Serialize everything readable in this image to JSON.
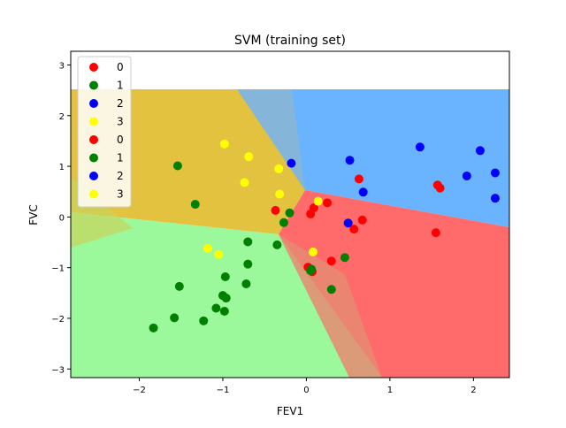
{
  "chart_data": {
    "type": "scatter",
    "title": "SVM (training set)",
    "xlabel": "FEV1",
    "ylabel": "FVC",
    "xlim": [
      -2.82,
      2.43
    ],
    "ylim": [
      -3.17,
      3.27
    ],
    "x_ticks": [
      -2,
      -1,
      0,
      1,
      2
    ],
    "x_tick_labels": [
      "−2",
      "−1",
      "0",
      "1",
      "2"
    ],
    "y_ticks": [
      -3,
      -2,
      -1,
      0,
      1,
      2,
      3
    ],
    "y_tick_labels": [
      "−3",
      "−2",
      "−1",
      "0",
      "1",
      "2",
      "3"
    ],
    "grid": false,
    "legend_position": "top-left",
    "legend": [
      {
        "label": "0",
        "color": "#ff0000"
      },
      {
        "label": "1",
        "color": "#008000"
      },
      {
        "label": "2",
        "color": "#0000ff"
      },
      {
        "label": "3",
        "color": "#ffff00"
      },
      {
        "label": "0",
        "color": "#ff0000"
      },
      {
        "label": "1",
        "color": "#008000"
      },
      {
        "label": "2",
        "color": "#0000ff"
      },
      {
        "label": "3",
        "color": "#ffff00"
      }
    ],
    "region_colors": {
      "0": "#ff6a6a",
      "1": "#9bf89b",
      "2": "#6ab4ff",
      "3": "#e3c240"
    },
    "series": [
      {
        "name": "0",
        "color": "#ff0000",
        "points": [
          [
            -0.37,
            0.13
          ],
          [
            0.05,
            0.06
          ],
          [
            0.09,
            0.18
          ],
          [
            0.25,
            0.28
          ],
          [
            0.57,
            -0.24
          ],
          [
            0.63,
            0.75
          ],
          [
            0.67,
            -0.06
          ],
          [
            1.57,
            0.63
          ],
          [
            1.6,
            0.57
          ],
          [
            1.55,
            -0.31
          ],
          [
            0.3,
            -0.87
          ],
          [
            0.02,
            -0.99
          ],
          [
            0.07,
            -1.08
          ]
        ]
      },
      {
        "name": "1",
        "color": "#008000",
        "points": [
          [
            -1.54,
            1.01
          ],
          [
            -1.33,
            0.25
          ],
          [
            -0.27,
            -0.11
          ],
          [
            -0.7,
            -0.49
          ],
          [
            -0.35,
            -0.55
          ],
          [
            -0.2,
            0.08
          ],
          [
            -0.7,
            -0.93
          ],
          [
            -0.97,
            -1.18
          ],
          [
            -0.72,
            -1.32
          ],
          [
            -1.52,
            -1.37
          ],
          [
            -1.0,
            -1.55
          ],
          [
            -0.96,
            -1.6
          ],
          [
            -1.08,
            -1.8
          ],
          [
            -0.98,
            -1.86
          ],
          [
            -1.58,
            -1.99
          ],
          [
            -1.23,
            -2.05
          ],
          [
            -1.83,
            -2.19
          ],
          [
            0.06,
            -1.03
          ],
          [
            0.3,
            -1.43
          ],
          [
            0.46,
            -0.8
          ],
          [
            0.05,
            -1.06
          ]
        ]
      },
      {
        "name": "2",
        "color": "#0000ff",
        "points": [
          [
            -0.18,
            1.06
          ],
          [
            0.52,
            1.12
          ],
          [
            0.68,
            0.49
          ],
          [
            1.36,
            1.38
          ],
          [
            2.08,
            1.31
          ],
          [
            1.92,
            0.81
          ],
          [
            2.26,
            0.87
          ],
          [
            2.26,
            0.37
          ],
          [
            0.5,
            -0.12
          ]
        ]
      },
      {
        "name": "3",
        "color": "#ffff00",
        "points": [
          [
            -0.98,
            1.44
          ],
          [
            -0.69,
            1.19
          ],
          [
            -0.74,
            0.68
          ],
          [
            -0.33,
            0.95
          ],
          [
            -0.32,
            0.45
          ],
          [
            0.14,
            0.31
          ],
          [
            -1.18,
            -0.62
          ],
          [
            -1.05,
            -0.74
          ],
          [
            0.08,
            -0.69
          ]
        ]
      }
    ]
  }
}
